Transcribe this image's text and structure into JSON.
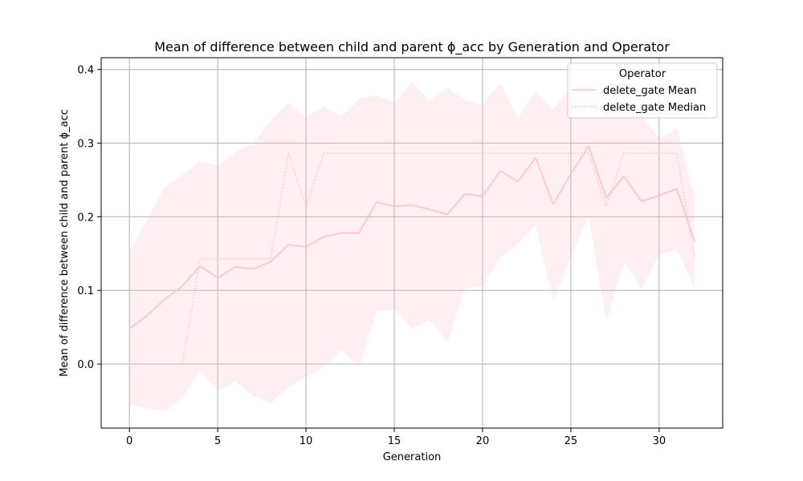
{
  "chart_data": {
    "type": "line",
    "title": "Mean of difference between child and parent ϕ_acc by Generation and Operator",
    "xlabel": "Generation",
    "ylabel": "Mean of difference between child and parent ϕ_acc",
    "xlim": [
      -1.6,
      33.6
    ],
    "ylim": [
      -0.087,
      0.416
    ],
    "xticks": [
      0,
      5,
      10,
      15,
      20,
      25,
      30
    ],
    "yticks": [
      0.0,
      0.1,
      0.2,
      0.3,
      0.4
    ],
    "ytick_labels": [
      "0.0",
      "0.1",
      "0.2",
      "0.3",
      "0.4"
    ],
    "grid": true,
    "legend": {
      "title": "Operator",
      "location": "top-right",
      "entries": [
        "delete_gate Mean",
        "delete_gate Median"
      ]
    },
    "colors": {
      "series": "#ffc0cb",
      "band": "#ffc0cb",
      "grid": "#b0b0b0",
      "axis": "#000000"
    },
    "x": [
      0,
      1,
      2,
      3,
      4,
      5,
      6,
      7,
      8,
      9,
      10,
      11,
      12,
      13,
      14,
      15,
      16,
      17,
      18,
      19,
      20,
      21,
      22,
      23,
      24,
      25,
      26,
      27,
      28,
      29,
      30,
      31,
      32
    ],
    "series": [
      {
        "name": "delete_gate Mean",
        "style": "solid",
        "values": [
          0.048,
          0.066,
          0.088,
          0.106,
          0.133,
          0.117,
          0.132,
          0.129,
          0.139,
          0.162,
          0.159,
          0.173,
          0.178,
          0.178,
          0.22,
          0.214,
          0.216,
          0.21,
          0.203,
          0.231,
          0.228,
          0.262,
          0.248,
          0.28,
          0.217,
          0.258,
          0.296,
          0.226,
          0.255,
          0.221,
          0.229,
          0.238,
          0.166
        ]
      },
      {
        "name": "delete_gate Median",
        "style": "dotted",
        "values": [
          0.0,
          0.0,
          0.0,
          0.0,
          0.143,
          0.143,
          0.143,
          0.143,
          0.143,
          0.286,
          0.214,
          0.286,
          0.286,
          0.286,
          0.286,
          0.286,
          0.286,
          0.286,
          0.286,
          0.286,
          0.286,
          0.286,
          0.286,
          0.286,
          0.286,
          0.286,
          0.286,
          0.214,
          0.286,
          0.286,
          0.286,
          0.286,
          0.143
        ]
      }
    ],
    "band": {
      "name": "delete_gate spread",
      "upper": [
        0.152,
        0.196,
        0.24,
        0.257,
        0.275,
        0.27,
        0.288,
        0.3,
        0.33,
        0.355,
        0.335,
        0.35,
        0.336,
        0.36,
        0.365,
        0.355,
        0.383,
        0.358,
        0.375,
        0.358,
        0.352,
        0.381,
        0.334,
        0.371,
        0.345,
        0.378,
        0.38,
        0.35,
        0.37,
        0.338,
        0.305,
        0.321,
        0.226
      ],
      "lower": [
        -0.055,
        -0.061,
        -0.064,
        -0.045,
        -0.01,
        -0.036,
        -0.023,
        -0.043,
        -0.053,
        -0.031,
        -0.018,
        -0.003,
        0.019,
        -0.005,
        0.072,
        0.074,
        0.048,
        0.06,
        0.03,
        0.103,
        0.106,
        0.145,
        0.163,
        0.189,
        0.087,
        0.145,
        0.203,
        0.058,
        0.14,
        0.102,
        0.149,
        0.155,
        0.104
      ]
    }
  }
}
